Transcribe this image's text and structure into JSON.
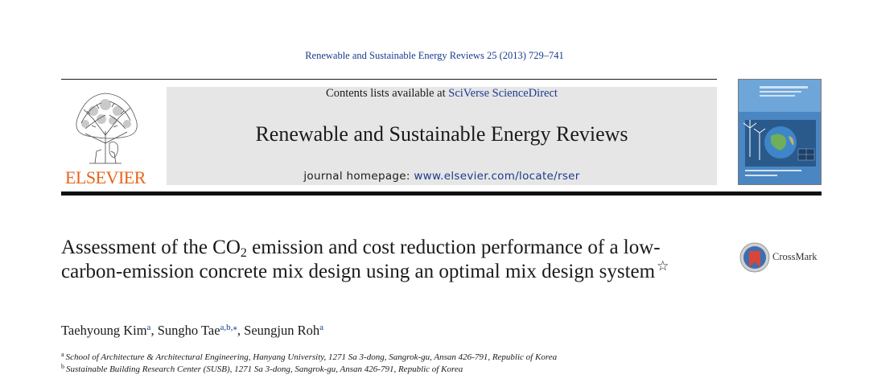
{
  "header": {
    "citation": "Renewable and Sustainable Energy Reviews 25 (2013) 729–741",
    "contents_prefix": "Contents lists available at ",
    "contents_link": "SciVerse ScienceDirect",
    "journal_name": "Renewable and Sustainable Energy Reviews",
    "homepage_prefix": "journal homepage: ",
    "homepage_url": "www.elsevier.com/locate/rser",
    "publisher_logo_text": "ELSEVIER"
  },
  "article": {
    "title_part1": "Assessment of the CO",
    "title_subscript": "2",
    "title_part2": " emission and cost reduction performance of a low-carbon-emission concrete mix design using an optimal mix design system",
    "title_mark": "☆",
    "authors": [
      {
        "name": "Taehyoung Kim",
        "marks": "a",
        "sep": ", "
      },
      {
        "name": "Sungho Tae",
        "marks": "a,b,⁎",
        "sep": ", "
      },
      {
        "name": "Seungjun Roh",
        "marks": "a",
        "sep": ""
      }
    ],
    "affiliations": [
      {
        "mark": "a",
        "text": "School of Architecture & Architectural Engineering, Hanyang University, 1271 Sa 3-dong, Sangrok-gu, Ansan 426-791, Republic of Korea"
      },
      {
        "mark": "b",
        "text": "Sustainable Building Research Center (SUSB), 1271 Sa 3-dong, Sangrok-gu, Ansan 426-791, Republic of Korea"
      }
    ]
  },
  "crossmark": {
    "label": "CrossMark"
  },
  "colors": {
    "link": "#1a3a8f",
    "elsevier_orange": "#e8631a",
    "banner_bg": "#e6e6e6"
  }
}
